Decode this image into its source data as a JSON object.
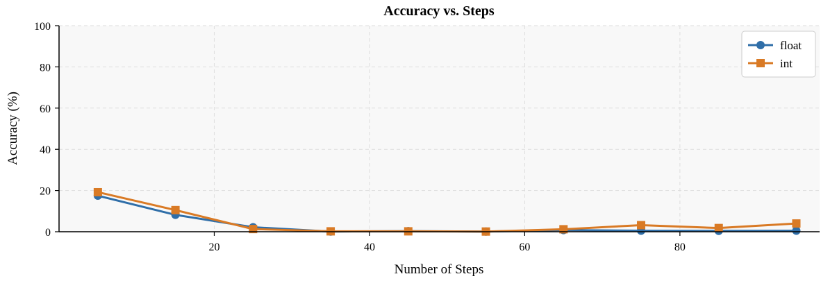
{
  "chart_data": {
    "type": "line",
    "title": "Accuracy vs. Steps",
    "xlabel": "Number of Steps",
    "ylabel": "Accuracy (%)",
    "xlim": [
      0,
      98
    ],
    "ylim": [
      0,
      100
    ],
    "xticks": [
      20,
      40,
      60,
      80
    ],
    "yticks": [
      0,
      20,
      40,
      60,
      80,
      100
    ],
    "grid": true,
    "legend_position": "top-right",
    "x": [
      5,
      15,
      25,
      35,
      45,
      55,
      65,
      75,
      85,
      95
    ],
    "series": [
      {
        "name": "float",
        "marker": "circle",
        "color": "#2f6ea8",
        "values": [
          17.5,
          8.2,
          2.2,
          0.1,
          0.3,
          0.1,
          0.8,
          0.5,
          0.4,
          0.5
        ]
      },
      {
        "name": "int",
        "marker": "square",
        "color": "#d97a25",
        "values": [
          19.2,
          10.5,
          1.3,
          0.2,
          0.2,
          0.1,
          1.2,
          3.2,
          1.8,
          4.0
        ]
      }
    ]
  }
}
